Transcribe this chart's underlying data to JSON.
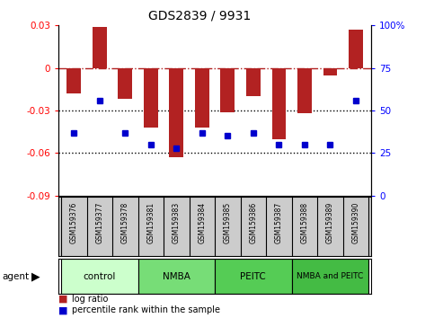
{
  "title": "GDS2839 / 9931",
  "samples": [
    "GSM159376",
    "GSM159377",
    "GSM159378",
    "GSM159381",
    "GSM159383",
    "GSM159384",
    "GSM159385",
    "GSM159386",
    "GSM159387",
    "GSM159388",
    "GSM159389",
    "GSM159390"
  ],
  "log_ratio": [
    -0.018,
    0.029,
    -0.022,
    -0.042,
    -0.063,
    -0.042,
    -0.031,
    -0.02,
    -0.05,
    -0.032,
    -0.005,
    0.027
  ],
  "percentile_rank": [
    37,
    56,
    37,
    30,
    28,
    37,
    35,
    37,
    30,
    30,
    30,
    56
  ],
  "ylim_left": [
    -0.09,
    0.03
  ],
  "ylim_right": [
    0,
    100
  ],
  "yticks_left": [
    -0.09,
    -0.06,
    -0.03,
    0,
    0.03
  ],
  "yticks_right": [
    0,
    25,
    50,
    75,
    100
  ],
  "dotted_lines": [
    -0.03,
    -0.06
  ],
  "bar_color": "#b22222",
  "dot_color": "#0000cd",
  "agent_groups": [
    {
      "label": "control",
      "start": 0,
      "end": 3,
      "color": "#ccffcc"
    },
    {
      "label": "NMBA",
      "start": 3,
      "end": 6,
      "color": "#77dd77"
    },
    {
      "label": "PEITC",
      "start": 6,
      "end": 9,
      "color": "#55cc55"
    },
    {
      "label": "NMBA and PEITC",
      "start": 9,
      "end": 12,
      "color": "#44bb44"
    }
  ],
  "background_color": "#ffffff"
}
